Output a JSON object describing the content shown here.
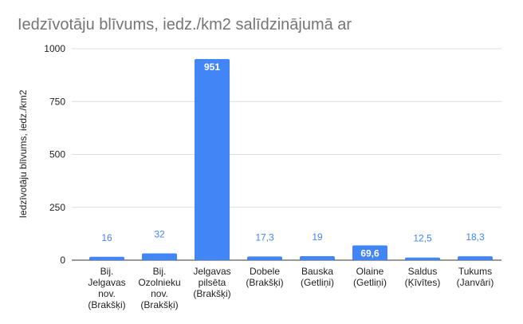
{
  "chart_data": {
    "type": "bar",
    "title": "Iedzīvotāju blīvums, iedz./km2 salīdzinājumā ar",
    "y_label": "Iedzīvotāju blīvums, iedz./km2",
    "categories": [
      [
        "Bij.",
        "Jelgavas",
        "nov.",
        "(Brakšķi)"
      ],
      [
        "Bij.",
        "Ozolnieku",
        "nov.",
        "(Brakšķi)"
      ],
      [
        "Jelgavas",
        "pilsēta",
        "(Brakšķi)"
      ],
      [
        "Dobele",
        "(Brakšķi)"
      ],
      [
        "Bauska",
        "(Getliņi)"
      ],
      [
        "Olaine",
        "(Getliņi)"
      ],
      [
        "Saldus",
        "(Ķīvītes)"
      ],
      [
        "Tukums",
        "(Janvāri)"
      ]
    ],
    "values": [
      16,
      32,
      951,
      17.3,
      19,
      69.6,
      12.5,
      18.3
    ],
    "value_labels": [
      "16",
      "32",
      "951",
      "17,3",
      "19",
      "69,6",
      "12,5",
      "18,3"
    ],
    "color": "#4285f4",
    "ylim": [
      0,
      1000
    ],
    "yticks": [
      0,
      250,
      500,
      750,
      1000
    ],
    "grid": true
  }
}
